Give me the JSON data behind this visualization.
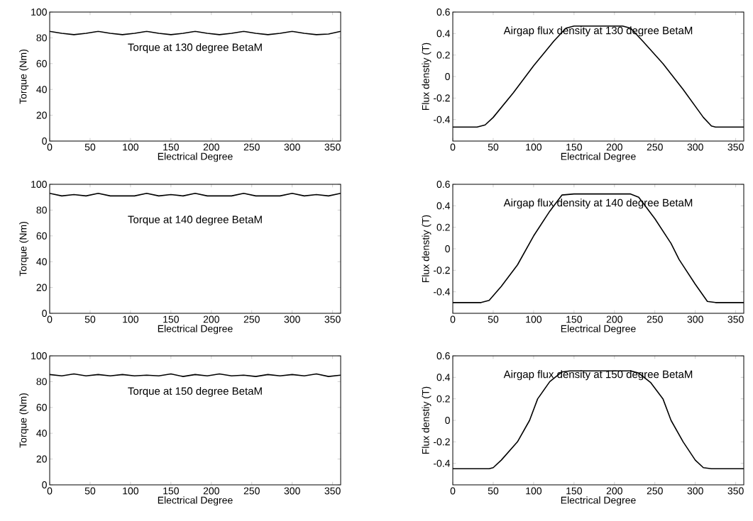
{
  "chart_data": [
    {
      "type": "line",
      "xlabel": "Electrical Degree",
      "ylabel": "Torque (Nm)",
      "xlim": [
        0,
        360
      ],
      "xticks": [
        0,
        50,
        100,
        150,
        200,
        250,
        300,
        350
      ],
      "ylim": [
        0,
        100
      ],
      "yticks": [
        0,
        20,
        40,
        60,
        80,
        100
      ],
      "annotations": [
        "Torque at 130 degree BetaM"
      ],
      "series": [
        {
          "color": "#000000",
          "x": [
            0,
            15,
            30,
            45,
            60,
            75,
            90,
            105,
            120,
            135,
            150,
            165,
            180,
            195,
            210,
            225,
            240,
            255,
            270,
            285,
            300,
            315,
            330,
            345,
            360
          ],
          "values": [
            85,
            83.5,
            82.5,
            83.5,
            85,
            83.5,
            82.5,
            83.5,
            85,
            83.5,
            82.5,
            83.5,
            85,
            83.5,
            82.5,
            83.5,
            85,
            83.5,
            82.5,
            83.5,
            85,
            83.5,
            82.5,
            83,
            85
          ]
        }
      ]
    },
    {
      "type": "line",
      "xlabel": "Electrical Degree",
      "ylabel": "Flux denstiy (T)",
      "xlim": [
        0,
        360
      ],
      "xticks": [
        0,
        50,
        100,
        150,
        200,
        250,
        300,
        350
      ],
      "ylim": [
        -0.6,
        0.6
      ],
      "yticks": [
        -0.4,
        -0.2,
        0,
        0.2,
        0.4,
        0.6
      ],
      "annotations": [
        "Airgap flux density at 130 degree BetaM"
      ],
      "series": [
        {
          "color": "#000000",
          "x": [
            0,
            30,
            40,
            50,
            75,
            100,
            125,
            140,
            150,
            210,
            220,
            235,
            260,
            285,
            310,
            320,
            325,
            360
          ],
          "values": [
            -0.47,
            -0.47,
            -0.45,
            -0.38,
            -0.15,
            0.1,
            0.33,
            0.45,
            0.47,
            0.47,
            0.45,
            0.33,
            0.12,
            -0.12,
            -0.38,
            -0.46,
            -0.47,
            -0.47
          ]
        }
      ]
    },
    {
      "type": "line",
      "xlabel": "Electrical Degree",
      "ylabel": "Torque (Nm)",
      "xlim": [
        0,
        360
      ],
      "xticks": [
        0,
        50,
        100,
        150,
        200,
        250,
        300,
        350
      ],
      "ylim": [
        0,
        100
      ],
      "yticks": [
        0,
        20,
        40,
        60,
        80,
        100
      ],
      "annotations": [
        "Torque at 140 degree BetaM"
      ],
      "series": [
        {
          "color": "#000000",
          "x": [
            0,
            15,
            30,
            45,
            60,
            75,
            90,
            105,
            120,
            135,
            150,
            165,
            180,
            195,
            210,
            225,
            240,
            255,
            270,
            285,
            300,
            315,
            330,
            345,
            360
          ],
          "values": [
            93,
            91,
            92,
            91,
            93,
            91,
            91,
            91,
            93,
            91,
            92,
            91,
            93,
            91,
            91,
            91,
            93,
            91,
            91,
            91,
            93,
            91,
            92,
            91,
            93
          ]
        }
      ]
    },
    {
      "type": "line",
      "xlabel": "Electrical Degree",
      "ylabel": "Flux denstiy (T)",
      "xlim": [
        0,
        360
      ],
      "xticks": [
        0,
        50,
        100,
        150,
        200,
        250,
        300,
        350
      ],
      "ylim": [
        -0.6,
        0.6
      ],
      "yticks": [
        -0.4,
        -0.2,
        0,
        0.2,
        0.4,
        0.6
      ],
      "annotations": [
        "Airgap flux density at 140 degree BetaM"
      ],
      "series": [
        {
          "color": "#000000",
          "x": [
            0,
            35,
            45,
            60,
            80,
            100,
            120,
            135,
            150,
            220,
            230,
            250,
            270,
            280,
            300,
            315,
            325,
            360
          ],
          "values": [
            -0.5,
            -0.5,
            -0.48,
            -0.35,
            -0.15,
            0.12,
            0.35,
            0.5,
            0.51,
            0.51,
            0.48,
            0.28,
            0.05,
            -0.1,
            -0.33,
            -0.49,
            -0.5,
            -0.5
          ]
        }
      ]
    },
    {
      "type": "line",
      "xlabel": "Electrical Degree",
      "ylabel": "Torque (Nm)",
      "xlim": [
        0,
        360
      ],
      "xticks": [
        0,
        50,
        100,
        150,
        200,
        250,
        300,
        350
      ],
      "ylim": [
        0,
        100
      ],
      "yticks": [
        0,
        20,
        40,
        60,
        80,
        100
      ],
      "annotations": [
        "Torque at 150 degree BetaM"
      ],
      "series": [
        {
          "color": "#000000",
          "x": [
            0,
            15,
            30,
            45,
            60,
            75,
            90,
            105,
            120,
            135,
            150,
            165,
            180,
            195,
            210,
            225,
            240,
            255,
            270,
            285,
            300,
            315,
            330,
            345,
            360
          ],
          "values": [
            85.5,
            84.5,
            86,
            84.5,
            85.5,
            84.5,
            85.5,
            84.5,
            85,
            84.5,
            86,
            84,
            85.5,
            84.5,
            86,
            84.5,
            85,
            84,
            85.5,
            84.5,
            85.5,
            84.5,
            86,
            84,
            85
          ]
        }
      ]
    },
    {
      "type": "line",
      "xlabel": "Electrical Degree",
      "ylabel": "Flux denstiy (T)",
      "xlim": [
        0,
        360
      ],
      "xticks": [
        0,
        50,
        100,
        150,
        200,
        250,
        300,
        350
      ],
      "ylim": [
        -0.6,
        0.6
      ],
      "yticks": [
        -0.4,
        -0.2,
        0,
        0.2,
        0.4,
        0.6
      ],
      "annotations": [
        "Airgap flux density at 150 degree BetaM"
      ],
      "series": [
        {
          "color": "#000000",
          "x": [
            0,
            45,
            50,
            60,
            80,
            95,
            105,
            120,
            135,
            145,
            220,
            230,
            245,
            260,
            270,
            285,
            300,
            310,
            320,
            360
          ],
          "values": [
            -0.45,
            -0.45,
            -0.44,
            -0.37,
            -0.2,
            0,
            0.2,
            0.36,
            0.45,
            0.46,
            0.46,
            0.44,
            0.35,
            0.2,
            0,
            -0.2,
            -0.37,
            -0.44,
            -0.45,
            -0.45
          ]
        }
      ]
    }
  ]
}
